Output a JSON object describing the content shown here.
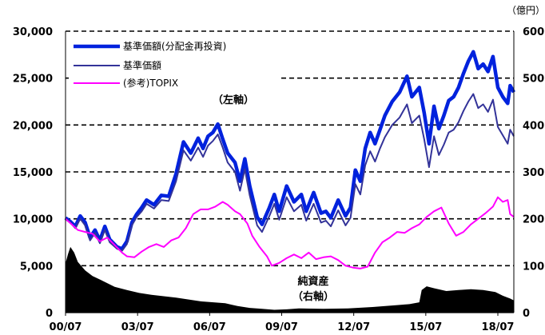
{
  "chart_data": {
    "type": "line",
    "unit_label": "（億円）",
    "annotations": {
      "left_axis_note": "（左軸）",
      "net_assets_label": "純資産",
      "right_axis_note": "（右軸）"
    },
    "x_ticks": [
      "00/07",
      "03/07",
      "06/07",
      "09/07",
      "12/07",
      "15/07",
      "18/07"
    ],
    "x_range": [
      2000.5,
      2018.75
    ],
    "y_left": {
      "range": [
        0,
        30000
      ],
      "ticks": [
        "0",
        "5,000",
        "10,000",
        "15,000",
        "20,000",
        "25,000",
        "30,000"
      ]
    },
    "y_right": {
      "range": [
        0,
        600
      ],
      "ticks": [
        "0",
        "100",
        "200",
        "300",
        "400",
        "500",
        "600"
      ]
    },
    "grid": "dashed horizontal",
    "legend": {
      "placement": "top-left",
      "entries": [
        "基準価額(分配金再投資)",
        "基準価額",
        "(参考)TOPIX"
      ]
    },
    "colors": {
      "reinvest": "#0022dd",
      "nav": "#333399",
      "topix": "#ff00ff",
      "net_assets": "#000000"
    },
    "series": [
      {
        "name": "基準価額(分配金再投資)",
        "x": [
          2000.5,
          2000.7,
          2000.9,
          2001.1,
          2001.3,
          2001.5,
          2001.7,
          2001.9,
          2002.1,
          2002.3,
          2002.6,
          2002.8,
          2003.0,
          2003.2,
          2003.4,
          2003.6,
          2003.8,
          2004.1,
          2004.4,
          2004.7,
          2005.0,
          2005.3,
          2005.6,
          2005.9,
          2006.1,
          2006.3,
          2006.5,
          2006.7,
          2006.9,
          2007.1,
          2007.4,
          2007.6,
          2007.8,
          2008.0,
          2008.3,
          2008.5,
          2008.8,
          2009.0,
          2009.2,
          2009.5,
          2009.8,
          2010.1,
          2010.3,
          2010.6,
          2010.9,
          2011.1,
          2011.3,
          2011.6,
          2011.9,
          2012.1,
          2012.3,
          2012.5,
          2012.7,
          2012.9,
          2013.1,
          2013.3,
          2013.5,
          2013.8,
          2014.1,
          2014.4,
          2014.6,
          2014.9,
          2015.1,
          2015.3,
          2015.5,
          2015.7,
          2015.9,
          2016.1,
          2016.3,
          2016.5,
          2016.7,
          2016.9,
          2017.1,
          2017.3,
          2017.5,
          2017.7,
          2017.9,
          2018.1,
          2018.3,
          2018.5,
          2018.6,
          2018.75
        ],
        "values": [
          10100,
          9700,
          9200,
          10300,
          9600,
          8000,
          8800,
          7700,
          9200,
          7800,
          7000,
          6800,
          7600,
          9600,
          10500,
          11200,
          12000,
          11500,
          12500,
          12400,
          14800,
          18200,
          17000,
          18600,
          17500,
          18800,
          19200,
          20100,
          18500,
          17000,
          16000,
          14000,
          16400,
          13500,
          10200,
          9400,
          11200,
          12600,
          10800,
          13500,
          11800,
          12600,
          10800,
          12800,
          10600,
          10800,
          10100,
          12000,
          10300,
          11200,
          15200,
          14000,
          17500,
          19200,
          18000,
          19500,
          21000,
          22500,
          23500,
          25200,
          23000,
          24000,
          21300,
          18000,
          22000,
          19600,
          21000,
          22600,
          23000,
          24000,
          25500,
          26800,
          27800,
          26000,
          26500,
          25700,
          27300,
          24000,
          23000,
          22300,
          24200,
          23500
        ]
      },
      {
        "name": "基準価額",
        "x": [
          2000.5,
          2000.7,
          2000.9,
          2001.1,
          2001.3,
          2001.5,
          2001.7,
          2001.9,
          2002.1,
          2002.3,
          2002.6,
          2002.8,
          2003.0,
          2003.2,
          2003.4,
          2003.6,
          2003.8,
          2004.1,
          2004.4,
          2004.7,
          2005.0,
          2005.3,
          2005.6,
          2005.9,
          2006.1,
          2006.3,
          2006.5,
          2006.7,
          2006.9,
          2007.1,
          2007.4,
          2007.6,
          2007.8,
          2008.0,
          2008.3,
          2008.5,
          2008.8,
          2009.0,
          2009.2,
          2009.5,
          2009.8,
          2010.1,
          2010.3,
          2010.6,
          2010.9,
          2011.1,
          2011.3,
          2011.6,
          2011.9,
          2012.1,
          2012.3,
          2012.5,
          2012.7,
          2012.9,
          2013.1,
          2013.3,
          2013.5,
          2013.8,
          2014.1,
          2014.4,
          2014.6,
          2014.9,
          2015.1,
          2015.3,
          2015.5,
          2015.7,
          2015.9,
          2016.1,
          2016.3,
          2016.5,
          2016.7,
          2016.9,
          2017.1,
          2017.3,
          2017.5,
          2017.7,
          2017.9,
          2018.1,
          2018.3,
          2018.5,
          2018.6,
          2018.75
        ],
        "values": [
          10000,
          9600,
          9000,
          10000,
          9300,
          7700,
          8500,
          7400,
          8800,
          7500,
          6800,
          6600,
          7300,
          9300,
          10200,
          10800,
          11600,
          11100,
          12000,
          11900,
          14000,
          17300,
          16200,
          17600,
          16600,
          17800,
          18300,
          19000,
          17600,
          16000,
          15000,
          13000,
          15300,
          12500,
          9300,
          8600,
          10300,
          11600,
          9900,
          12300,
          10800,
          11500,
          9800,
          11600,
          9600,
          9800,
          9200,
          10900,
          9300,
          10100,
          13700,
          12600,
          15700,
          17200,
          16100,
          17500,
          18700,
          20000,
          20800,
          22200,
          20200,
          21000,
          18500,
          15500,
          18800,
          16800,
          17900,
          19200,
          19500,
          20300,
          21500,
          22500,
          23300,
          21800,
          22200,
          21400,
          22700,
          19800,
          18900,
          18000,
          19500,
          18800
        ]
      },
      {
        "name": "(参考)TOPIX",
        "x": [
          2000.5,
          2000.8,
          2001.0,
          2001.3,
          2001.6,
          2001.9,
          2002.2,
          2002.5,
          2002.8,
          2003.0,
          2003.3,
          2003.6,
          2003.9,
          2004.2,
          2004.5,
          2004.8,
          2005.1,
          2005.4,
          2005.7,
          2006.0,
          2006.3,
          2006.6,
          2006.9,
          2007.1,
          2007.4,
          2007.6,
          2007.9,
          2008.1,
          2008.4,
          2008.7,
          2008.9,
          2009.2,
          2009.5,
          2009.8,
          2010.1,
          2010.4,
          2010.7,
          2011.0,
          2011.3,
          2011.6,
          2011.9,
          2012.2,
          2012.5,
          2012.8,
          2013.1,
          2013.4,
          2013.7,
          2014.0,
          2014.3,
          2014.6,
          2014.9,
          2015.2,
          2015.5,
          2015.8,
          2016.1,
          2016.4,
          2016.7,
          2017.0,
          2017.3,
          2017.6,
          2017.9,
          2018.1,
          2018.3,
          2018.5,
          2018.6,
          2018.75
        ],
        "values": [
          10000,
          9300,
          8800,
          8600,
          8400,
          7600,
          8000,
          7200,
          6400,
          6000,
          5900,
          6500,
          7000,
          7300,
          7000,
          7700,
          8000,
          9000,
          10500,
          11000,
          11000,
          11300,
          11800,
          11500,
          10800,
          10500,
          9500,
          8200,
          7000,
          6000,
          5000,
          5300,
          5800,
          6200,
          5800,
          6400,
          5700,
          5900,
          6000,
          5600,
          5000,
          4800,
          4700,
          4900,
          6400,
          7500,
          8000,
          8600,
          8500,
          9000,
          9400,
          10200,
          10800,
          11200,
          9500,
          8200,
          8600,
          9400,
          10000,
          10600,
          11300,
          12300,
          11800,
          12000,
          10500,
          10200
        ]
      },
      {
        "name": "純資産",
        "axis": "right",
        "x": [
          2000.5,
          2000.6,
          2000.7,
          2000.85,
          2001.0,
          2001.3,
          2001.6,
          2002.0,
          2002.5,
          2003.0,
          2003.5,
          2004.0,
          2005.0,
          2006.0,
          2007.0,
          2007.5,
          2008.0,
          2008.5,
          2009.0,
          2009.5,
          2010.0,
          2011.0,
          2012.0,
          2013.0,
          2014.0,
          2014.5,
          2014.9,
          2015.0,
          2015.2,
          2015.5,
          2016.0,
          2016.5,
          2017.0,
          2017.5,
          2018.0,
          2018.3,
          2018.6,
          2018.75
        ],
        "values": [
          105,
          125,
          140,
          128,
          108,
          90,
          78,
          68,
          55,
          48,
          42,
          38,
          32,
          24,
          20,
          14,
          10,
          8,
          6,
          7,
          9,
          8,
          9,
          12,
          16,
          18,
          22,
          48,
          56,
          52,
          46,
          48,
          50,
          48,
          44,
          36,
          30,
          26
        ]
      }
    ]
  }
}
